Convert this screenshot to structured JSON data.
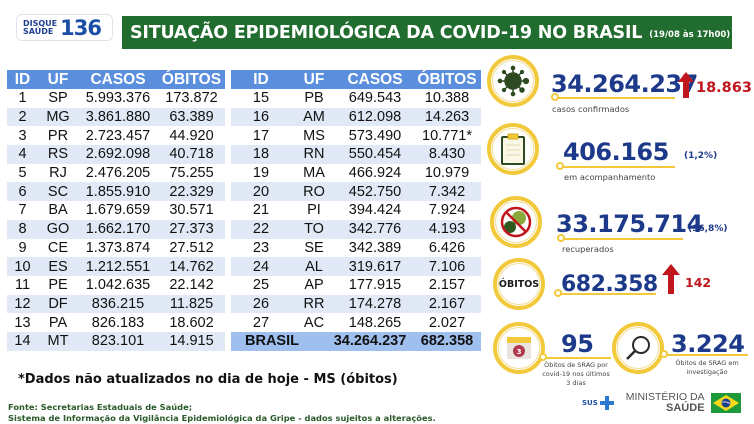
{
  "header": {
    "logo": {
      "line1": "DISQUE",
      "line2": "SAÚDE",
      "number": "136"
    },
    "title": "SITUAÇÃO EPIDEMIOLÓGICA DA COVID-19 NO BRASIL",
    "date": "(19/08 às 17h00)"
  },
  "table": {
    "columns": [
      "ID",
      "UF",
      "CASOS",
      "ÓBITOS"
    ],
    "left_rows": [
      {
        "id": "1",
        "uf": "SP",
        "casos": "5.993.376",
        "obitos": "173.872"
      },
      {
        "id": "2",
        "uf": "MG",
        "casos": "3.861.880",
        "obitos": "63.389"
      },
      {
        "id": "3",
        "uf": "PR",
        "casos": "2.723.457",
        "obitos": "44.920"
      },
      {
        "id": "4",
        "uf": "RS",
        "casos": "2.692.098",
        "obitos": "40.718"
      },
      {
        "id": "5",
        "uf": "RJ",
        "casos": "2.476.205",
        "obitos": "75.255"
      },
      {
        "id": "6",
        "uf": "SC",
        "casos": "1.855.910",
        "obitos": "22.329"
      },
      {
        "id": "7",
        "uf": "BA",
        "casos": "1.679.659",
        "obitos": "30.571"
      },
      {
        "id": "8",
        "uf": "GO",
        "casos": "1.662.170",
        "obitos": "27.373"
      },
      {
        "id": "9",
        "uf": "CE",
        "casos": "1.373.874",
        "obitos": "27.512"
      },
      {
        "id": "10",
        "uf": "ES",
        "casos": "1.212.551",
        "obitos": "14.762"
      },
      {
        "id": "11",
        "uf": "PE",
        "casos": "1.042.635",
        "obitos": "22.142"
      },
      {
        "id": "12",
        "uf": "DF",
        "casos": "836.215",
        "obitos": "11.825"
      },
      {
        "id": "13",
        "uf": "PA",
        "casos": "826.183",
        "obitos": "18.602"
      },
      {
        "id": "14",
        "uf": "MT",
        "casos": "823.101",
        "obitos": "14.915"
      }
    ],
    "right_rows": [
      {
        "id": "15",
        "uf": "PB",
        "casos": "649.543",
        "obitos": "10.388"
      },
      {
        "id": "16",
        "uf": "AM",
        "casos": "612.098",
        "obitos": "14.263"
      },
      {
        "id": "17",
        "uf": "MS",
        "casos": "573.490",
        "obitos": "10.771*"
      },
      {
        "id": "18",
        "uf": "RN",
        "casos": "550.454",
        "obitos": "8.430"
      },
      {
        "id": "19",
        "uf": "MA",
        "casos": "466.924",
        "obitos": "10.979"
      },
      {
        "id": "20",
        "uf": "RO",
        "casos": "452.750",
        "obitos": "7.342"
      },
      {
        "id": "21",
        "uf": "PI",
        "casos": "394.424",
        "obitos": "7.924"
      },
      {
        "id": "22",
        "uf": "TO",
        "casos": "342.776",
        "obitos": "4.193"
      },
      {
        "id": "23",
        "uf": "SE",
        "casos": "342.389",
        "obitos": "6.426"
      },
      {
        "id": "24",
        "uf": "AL",
        "casos": "319.617",
        "obitos": "7.106"
      },
      {
        "id": "25",
        "uf": "AP",
        "casos": "177.915",
        "obitos": "2.157"
      },
      {
        "id": "26",
        "uf": "RR",
        "casos": "174.278",
        "obitos": "2.167"
      },
      {
        "id": "27",
        "uf": "AC",
        "casos": "148.265",
        "obitos": "2.027"
      }
    ],
    "total": {
      "label": "BRASIL",
      "casos": "34.264.237",
      "obitos": "682.358"
    }
  },
  "stats": {
    "confirmed": {
      "value": "34.264.237",
      "delta": "18.863",
      "label": "casos confirmados",
      "icon": "virus-icon"
    },
    "monitoring": {
      "value": "406.165",
      "pct": "(1,2%)",
      "label": "em acompanhamento",
      "icon": "clipboard-icon"
    },
    "recovered": {
      "value": "33.175.714",
      "pct": "(96,8%)",
      "label": "recuperados",
      "icon": "no-virus-icon"
    },
    "deaths": {
      "badge": "ÓBITOS",
      "value": "682.358",
      "delta": "142"
    },
    "srag_recent": {
      "value": "95",
      "label_lines": [
        "Óbitos de SRAG por",
        "covid-19 nos últimos",
        "3 dias"
      ],
      "calendar_day": "3"
    },
    "srag_investigation": {
      "value": "3.224",
      "label_lines": [
        "Óbitos de SRAG em",
        "investigação"
      ]
    }
  },
  "note": "*Dados não atualizados no dia de hoje - MS (óbitos)",
  "source": {
    "line1": "Fonte: Secretarias Estaduais de Saúde;",
    "line2": "Sistema de Informação da Vigilância Epidemiológica da Gripe - dados sujeitos a alterações."
  },
  "footer": {
    "sus": "SUS",
    "ministry_line1": "MINISTÉRIO DA",
    "ministry_line2": "SAÚDE"
  },
  "colors": {
    "title_green": "#216c2f",
    "table_header": "#5b8fdd",
    "row_alt": "#e1e9f6",
    "total_row": "#9fbfee",
    "accent_yellow": "#f2c93b",
    "value_blue": "#1d3a8a",
    "delta_red": "#c0161d"
  }
}
